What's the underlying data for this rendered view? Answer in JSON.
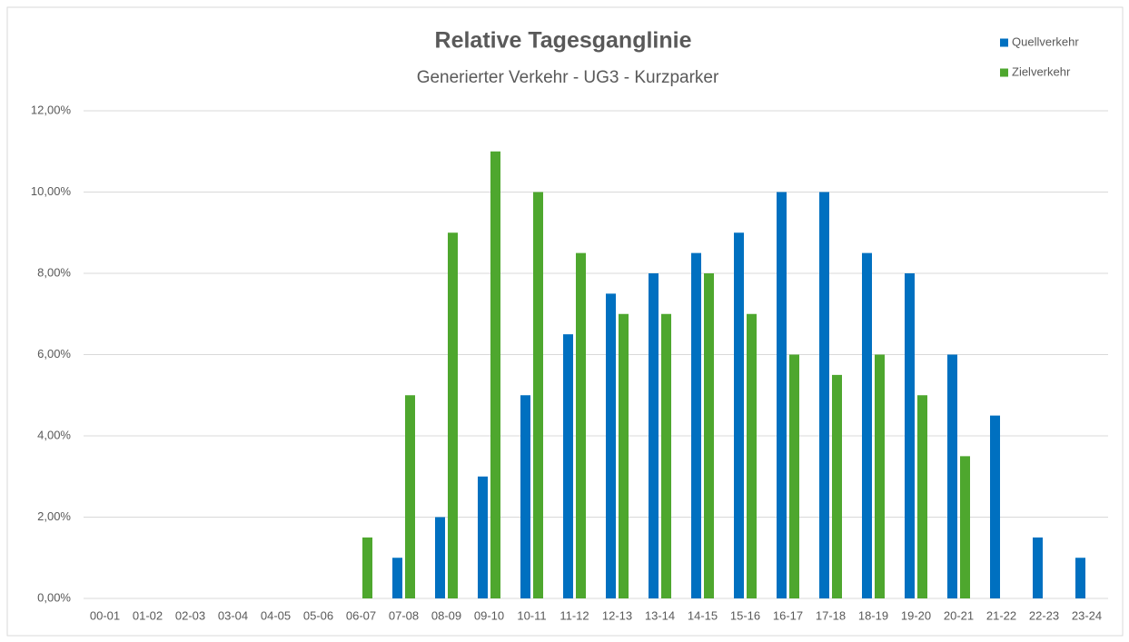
{
  "chart_data": {
    "type": "bar",
    "title": "Relative Tagesganglinie",
    "subtitle": "Generierter Verkehr - UG3 - Kurzparker",
    "categories": [
      "00-01",
      "01-02",
      "02-03",
      "03-04",
      "04-05",
      "05-06",
      "06-07",
      "07-08",
      "08-09",
      "09-10",
      "10-11",
      "11-12",
      "12-13",
      "13-14",
      "14-15",
      "15-16",
      "16-17",
      "17-18",
      "18-19",
      "19-20",
      "20-21",
      "21-22",
      "22-23",
      "23-24"
    ],
    "series": [
      {
        "name": "Quellverkehr",
        "color": "#0070c0",
        "values": [
          0,
          0,
          0,
          0,
          0,
          0,
          0,
          1,
          2,
          3,
          5,
          6.5,
          7.5,
          8,
          8.5,
          9,
          10,
          10,
          8.5,
          8,
          6,
          4.5,
          1.5,
          1
        ]
      },
      {
        "name": "Zielverkehr",
        "color": "#4ea72e",
        "values": [
          0,
          0,
          0,
          0,
          0,
          0,
          1.5,
          5,
          9,
          11,
          10,
          8.5,
          7,
          7,
          8,
          7,
          6,
          5.5,
          6,
          5,
          3.5,
          0,
          0,
          0
        ]
      }
    ],
    "ylim": [
      0,
      12
    ],
    "yticks": [
      {
        "value": 0,
        "label": "0,00%"
      },
      {
        "value": 2,
        "label": "2,00%"
      },
      {
        "value": 4,
        "label": "4,00%"
      },
      {
        "value": 6,
        "label": "6,00%"
      },
      {
        "value": 8,
        "label": "8,00%"
      },
      {
        "value": 10,
        "label": "10,00%"
      },
      {
        "value": 12,
        "label": "12,00%"
      }
    ],
    "grid": true,
    "legend": "top-right"
  }
}
